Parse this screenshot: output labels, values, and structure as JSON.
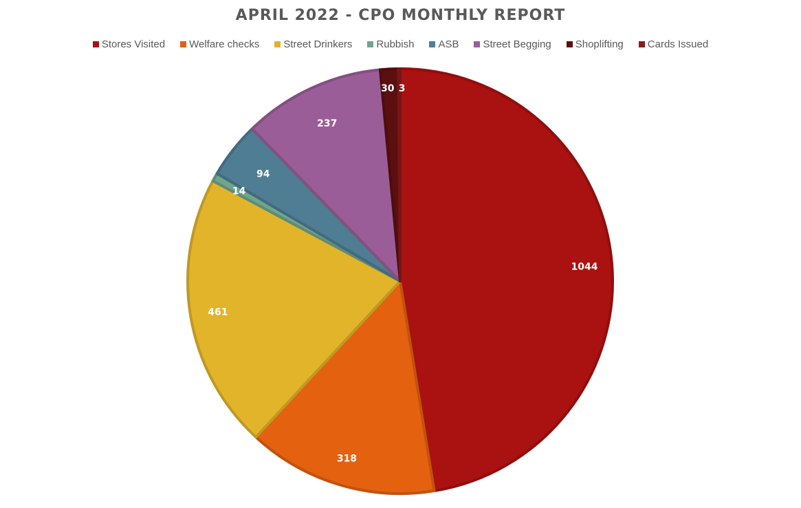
{
  "chart_data": {
    "type": "pie",
    "title": "APRIL 2022 - CPO MONTHLY REPORT",
    "legend_position": "top",
    "categories": [
      "Stores Visited",
      "Welfare checks",
      "Street Drinkers",
      "Rubbish",
      "ASB",
      "Street Begging",
      "Shoplifting",
      "Cards Issued"
    ],
    "values": [
      1044,
      318,
      461,
      14,
      94,
      237,
      30,
      3
    ],
    "data_labels": [
      "1044",
      "318",
      "461",
      "14",
      "94",
      "237",
      "30",
      "3"
    ],
    "colors": [
      "#A91210",
      "#E4610F",
      "#E2B42A",
      "#6FA58C",
      "#4F7D93",
      "#9B5D98",
      "#5C0F0F",
      "#8B1A1A"
    ]
  }
}
